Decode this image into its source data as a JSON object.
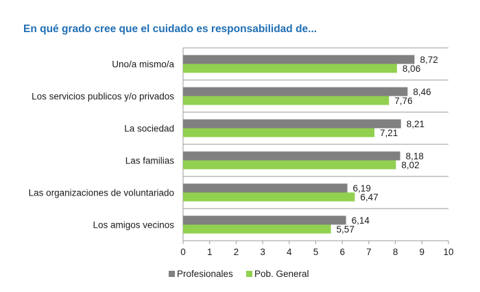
{
  "chart_data": {
    "type": "bar",
    "orientation": "horizontal",
    "title": "En qué grado cree que el cuidado es responsabilidad de...",
    "categories": [
      "Uno/a mismo/a",
      "Los servicios publicos y/o privados",
      "La sociedad",
      "Las familias",
      "Las organizaciones de voluntariado",
      "Los amigos vecinos"
    ],
    "series": [
      {
        "name": "Profesionales",
        "color": "#808080",
        "values": [
          8.72,
          8.46,
          8.21,
          8.18,
          6.19,
          6.14
        ],
        "labels": [
          "8,72",
          "8,46",
          "8,21",
          "8,18",
          "6,19",
          "6,14"
        ]
      },
      {
        "name": "Pob. General",
        "color": "#92d050",
        "values": [
          8.06,
          7.76,
          7.21,
          8.02,
          6.47,
          5.57
        ],
        "labels": [
          "8,06",
          "7,76",
          "7,21",
          "8,02",
          "6,47",
          "5,57"
        ]
      }
    ],
    "xlim": [
      0,
      10
    ],
    "xticks": [
      "0",
      "1",
      "2",
      "3",
      "4",
      "5",
      "6",
      "7",
      "8",
      "9",
      "10"
    ],
    "grid": "horizontal separators between categories",
    "legend_position": "bottom"
  }
}
